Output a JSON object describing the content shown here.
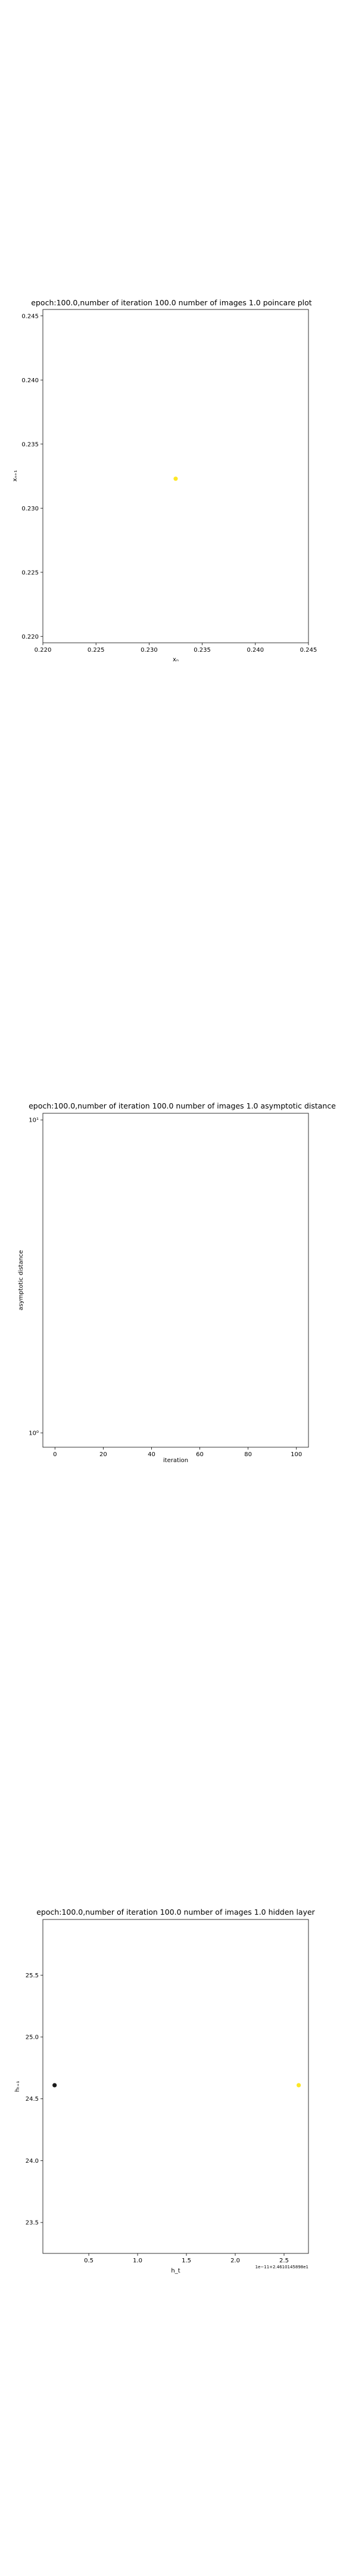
{
  "chart_data": [
    {
      "type": "scatter",
      "title": "epoch:100.0,number of iteration 100.0 number of images 1.0 poincare plot",
      "xlabel": "xₙ",
      "ylabel": "xₙ₊₁",
      "xlim": [
        0.22,
        0.245
      ],
      "ylim": [
        0.2195,
        0.2455
      ],
      "xticks": [
        0.22,
        0.225,
        0.23,
        0.235,
        0.24,
        0.245
      ],
      "xtick_labels": [
        "0.220",
        "0.225",
        "0.230",
        "0.235",
        "0.240",
        "0.245"
      ],
      "yticks": [
        0.22,
        0.225,
        0.23,
        0.235,
        0.24,
        0.245
      ],
      "ytick_labels": [
        "0.220",
        "0.225",
        "0.230",
        "0.235",
        "0.240",
        "0.245"
      ],
      "points": [
        {
          "x": 0.2325,
          "y": 0.2323,
          "color": "#fde725"
        }
      ]
    },
    {
      "type": "line",
      "title": "epoch:100.0,number of iteration 100.0  number of images 1.0 asymptotic distance",
      "xlabel": "iteration",
      "ylabel": "asymptotic distance",
      "yscale": "log",
      "xlim": [
        -5,
        105
      ],
      "ylim": [
        0.9,
        10.5
      ],
      "xticks": [
        0,
        20,
        40,
        60,
        80,
        100
      ],
      "xtick_labels": [
        "0",
        "20",
        "40",
        "60",
        "80",
        "100"
      ],
      "yticks": [
        1,
        10
      ],
      "ytick_labels": [
        "10⁰",
        "10¹"
      ],
      "series": []
    },
    {
      "type": "scatter",
      "title": "epoch:100.0,number of iteration 100.0  number of images 1.0 hidden layer",
      "xlabel": "h_t",
      "ylabel": "hₜ₊₁",
      "offset_text": "1e−11+2.4610145898e1",
      "xlim": [
        0.03,
        2.75
      ],
      "ylim": [
        23.25,
        25.95
      ],
      "xticks": [
        0.5,
        1.0,
        1.5,
        2.0,
        2.5
      ],
      "xtick_labels": [
        "0.5",
        "1.0",
        "1.5",
        "2.0",
        "2.5"
      ],
      "yticks": [
        23.5,
        24.0,
        24.5,
        25.0,
        25.5
      ],
      "ytick_labels": [
        "23.5",
        "24.0",
        "24.5",
        "25.0",
        "25.5"
      ],
      "points": [
        {
          "x": 0.15,
          "y": 24.61,
          "color": "#1a1a1a"
        },
        {
          "x": 2.65,
          "y": 24.61,
          "color": "#fde725"
        }
      ]
    }
  ]
}
